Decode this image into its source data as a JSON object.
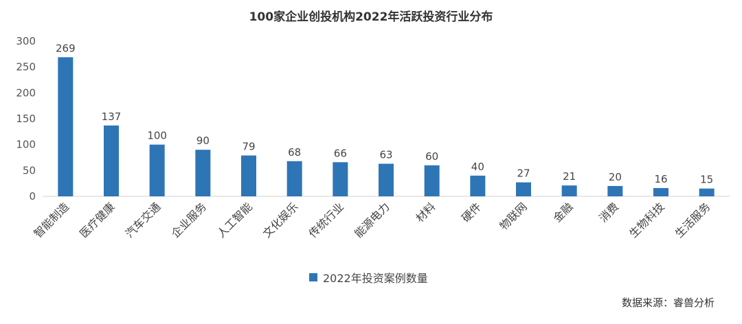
{
  "chart_data": {
    "type": "bar",
    "title": "100家企业创投机构2022年活跃投资行业分布",
    "xlabel": "",
    "ylabel": "",
    "ylim": [
      0,
      300
    ],
    "yticks": [
      0,
      50,
      100,
      150,
      200,
      250,
      300
    ],
    "grid": false,
    "legend_position": "bottom",
    "categories": [
      "智能制造",
      "医疗健康",
      "汽车交通",
      "企业服务",
      "人工智能",
      "文化娱乐",
      "传统行业",
      "能源电力",
      "材料",
      "硬件",
      "物联网",
      "金融",
      "消费",
      "生物科技",
      "生活服务"
    ],
    "series": [
      {
        "name": "2022年投资案例数量",
        "color": "#2E75B6",
        "values": [
          269,
          137,
          100,
          90,
          79,
          68,
          66,
          63,
          60,
          40,
          27,
          21,
          20,
          16,
          15
        ]
      }
    ]
  },
  "source": "数据来源：睿兽分析"
}
